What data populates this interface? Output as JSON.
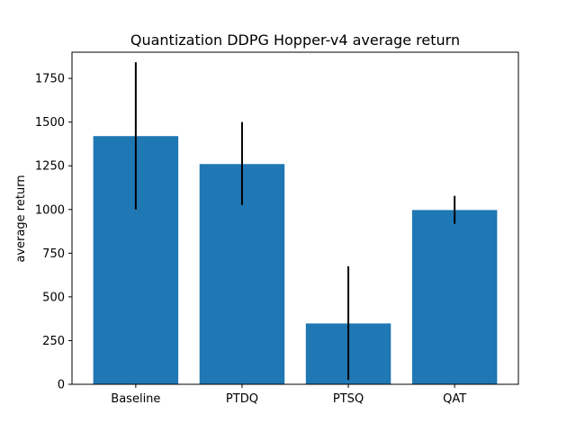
{
  "chart_data": {
    "type": "bar",
    "title": "Quantization DDPG Hopper-v4 average return",
    "xlabel": "",
    "ylabel": "average return",
    "categories": [
      "Baseline",
      "PTDQ",
      "PTSQ",
      "QAT"
    ],
    "values": [
      1420,
      1260,
      348,
      997
    ],
    "error_low": [
      1000,
      1025,
      25,
      918
    ],
    "error_high": [
      1843,
      1500,
      675,
      1078
    ],
    "ylim": [
      0,
      1900
    ],
    "yticks": [
      0,
      250,
      500,
      750,
      1000,
      1250,
      1500,
      1750
    ],
    "ytick_labels": [
      "0",
      "250",
      "500",
      "750",
      "1000",
      "1250",
      "1500",
      "1750"
    ],
    "grid": false,
    "colors": {
      "bar": "#1f77b4",
      "error_bar": "#000000",
      "axis": "#000000"
    }
  }
}
